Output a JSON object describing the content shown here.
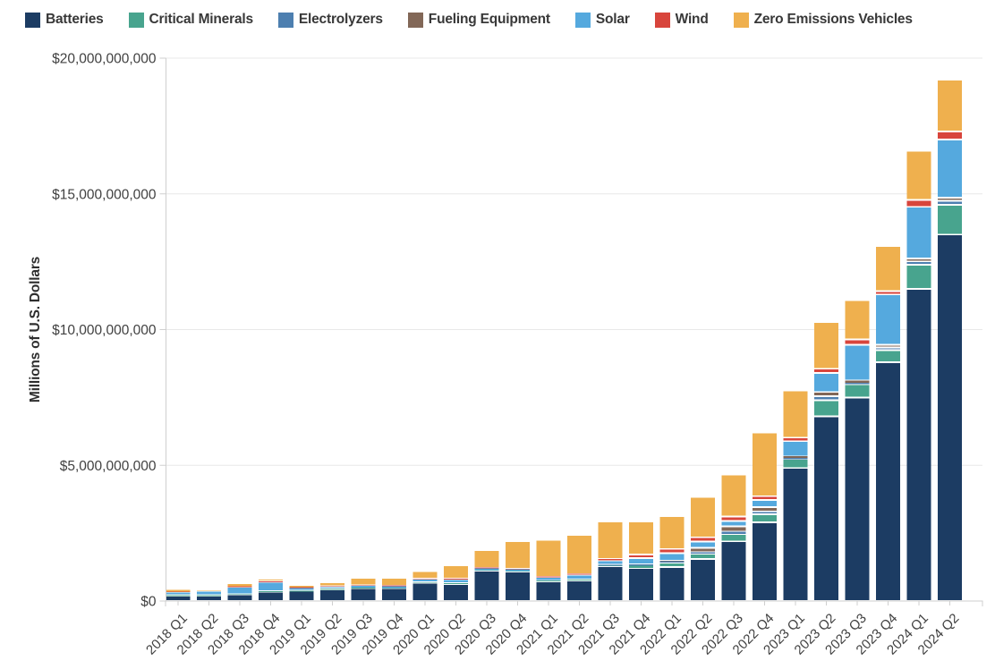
{
  "chart_data": {
    "type": "bar",
    "stacked": true,
    "title": "",
    "units": "USD billions",
    "ylabel": "Millions of U.S. Dollars",
    "ylim_billions": [
      0,
      20
    ],
    "grid": "horizontal",
    "legend_position": "top",
    "y_ticks": [
      {
        "label": "$0",
        "value": 0
      },
      {
        "label": "$5,000,000,000",
        "value": 5
      },
      {
        "label": "$10,000,000,000",
        "value": 10
      },
      {
        "label": "$15,000,000,000",
        "value": 15
      },
      {
        "label": "$20,000,000,000",
        "value": 20
      }
    ],
    "categories": [
      "2018 Q1",
      "2018 Q2",
      "2018 Q3",
      "2018 Q4",
      "2019 Q1",
      "2019 Q2",
      "2019 Q3",
      "2019 Q4",
      "2020 Q1",
      "2020 Q2",
      "2020 Q3",
      "2020 Q4",
      "2021 Q1",
      "2021 Q2",
      "2021 Q3",
      "2021 Q4",
      "2022 Q1",
      "2022 Q2",
      "2022 Q3",
      "2022 Q4",
      "2023 Q1",
      "2023 Q2",
      "2023 Q3",
      "2023 Q4",
      "2024 Q1",
      "2024 Q2"
    ],
    "series": [
      {
        "name": "Batteries",
        "color": "#1c3c63",
        "values": [
          0.2,
          0.2,
          0.24,
          0.35,
          0.37,
          0.43,
          0.48,
          0.47,
          0.68,
          0.63,
          1.12,
          1.09,
          0.72,
          0.76,
          1.28,
          1.22,
          1.25,
          1.55,
          2.2,
          2.9,
          4.9,
          6.8,
          7.5,
          8.8,
          11.5,
          13.5
        ]
      },
      {
        "name": "Critical Minerals",
        "color": "#48a48e",
        "values": [
          0.01,
          0.01,
          0.01,
          0.01,
          0.01,
          0.01,
          0.01,
          0.01,
          0.02,
          0.03,
          0.02,
          0.02,
          0.03,
          0.03,
          0.04,
          0.08,
          0.16,
          0.2,
          0.27,
          0.3,
          0.33,
          0.6,
          0.49,
          0.44,
          0.89,
          1.1
        ]
      },
      {
        "name": "Electrolyzers",
        "color": "#4d7fb0",
        "values": [
          0,
          0,
          0,
          0,
          0,
          0,
          0,
          0,
          0,
          0,
          0,
          0,
          0,
          0,
          0.01,
          0.05,
          0.05,
          0.05,
          0.08,
          0.1,
          0.05,
          0.15,
          0.05,
          0.1,
          0.12,
          0.14
        ]
      },
      {
        "name": "Fueling Equipment",
        "color": "#826757",
        "values": [
          0,
          0,
          0,
          0,
          0,
          0,
          0,
          0,
          0,
          0,
          0,
          0,
          0,
          0,
          0,
          0,
          0.03,
          0.16,
          0.2,
          0.16,
          0.05,
          0.15,
          0.08,
          0.1,
          0.11,
          0.12
        ]
      },
      {
        "name": "Solar",
        "color": "#55a9de",
        "values": [
          0.13,
          0.17,
          0.28,
          0.35,
          0.12,
          0.1,
          0.08,
          0.08,
          0.12,
          0.15,
          0.08,
          0.07,
          0.13,
          0.18,
          0.17,
          0.23,
          0.27,
          0.23,
          0.2,
          0.26,
          0.56,
          0.7,
          1.32,
          1.85,
          1.9,
          2.14
        ]
      },
      {
        "name": "Wind",
        "color": "#d8453c",
        "values": [
          0.01,
          0.0,
          0.01,
          0.01,
          0.01,
          0.01,
          0.01,
          0.01,
          0.01,
          0.01,
          0.01,
          0.01,
          0.02,
          0.03,
          0.05,
          0.13,
          0.16,
          0.16,
          0.16,
          0.14,
          0.13,
          0.16,
          0.2,
          0.13,
          0.26,
          0.3
        ]
      },
      {
        "name": "Zero Emissions Vehicles",
        "color": "#efb04e",
        "values": [
          0.06,
          0.02,
          0.08,
          0.1,
          0.05,
          0.14,
          0.28,
          0.28,
          0.27,
          0.5,
          0.65,
          1.01,
          1.35,
          1.43,
          1.38,
          1.22,
          1.2,
          1.48,
          1.55,
          2.35,
          1.74,
          1.71,
          1.45,
          1.65,
          1.81,
          1.91
        ]
      }
    ],
    "colors": {
      "grid": "#e8e8e8",
      "axis": "#cfcfcf",
      "tick_text": "#414141"
    }
  }
}
